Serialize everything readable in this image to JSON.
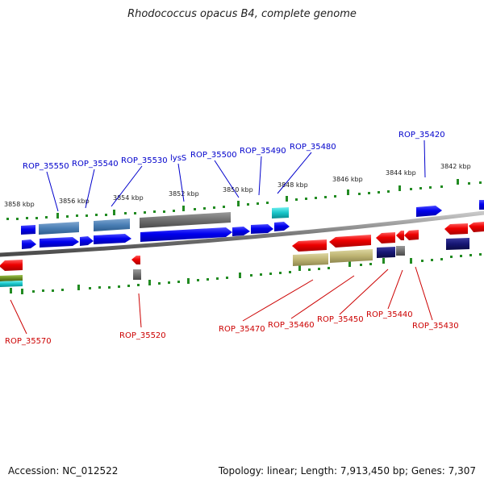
{
  "title": "Rhodococcus opacus B4, complete genome",
  "footer": {
    "accession": "Accession: NC_012522",
    "summary": "Topology: linear; Length: 7,913,450 bp; Genes: 7,307"
  },
  "colors": {
    "forward_label": "#0000cc",
    "reverse_label": "#cc0000",
    "backbone": "#888888",
    "tick": "#228b22"
  },
  "scale_labels": [
    "3858 kbp",
    "3856 kbp",
    "3854 kbp",
    "3852 kbp",
    "3850 kbp",
    "3848 kbp",
    "3846 kbp",
    "3844 kbp",
    "3842 kbp"
  ],
  "forward_gene_labels": [
    "ROP_35550",
    "ROP_35540",
    "ROP_35530",
    "lysS",
    "ROP_35500",
    "ROP_35490",
    "ROP_35480",
    "ROP_35420"
  ],
  "reverse_gene_labels": [
    "ROP_35570",
    "ROP_35520",
    "ROP_35470",
    "ROP_35460",
    "ROP_35450",
    "ROP_35440",
    "ROP_35430"
  ]
}
